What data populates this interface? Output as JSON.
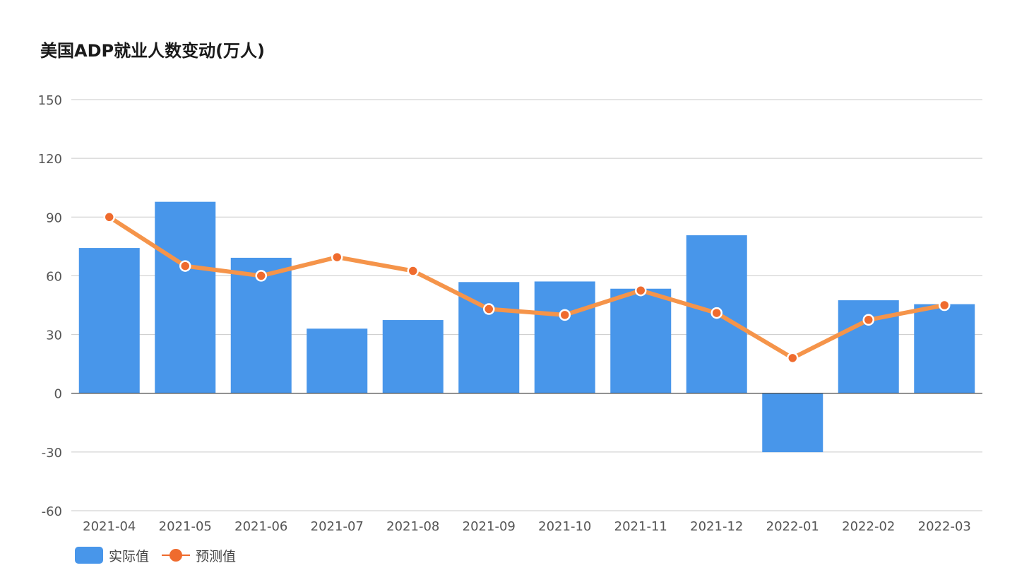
{
  "chart_data": {
    "type": "bar",
    "title": "美国ADP就业人数变动(万人)",
    "categories": [
      "2021-04",
      "2021-05",
      "2021-06",
      "2021-07",
      "2021-08",
      "2021-09",
      "2021-10",
      "2021-11",
      "2021-12",
      "2022-01",
      "2022-02",
      "2022-03"
    ],
    "series": [
      {
        "name": "实际值",
        "type": "bar",
        "color": "#4896ea",
        "values": [
          74.2,
          97.8,
          69.2,
          33.0,
          37.4,
          56.8,
          57.1,
          53.4,
          80.7,
          -30.1,
          47.5,
          45.5
        ]
      },
      {
        "name": "预测值",
        "type": "line",
        "color": "#f5944a",
        "marker_color": "#ef6b2e",
        "values": [
          90.0,
          65.0,
          60.0,
          69.5,
          62.5,
          43.0,
          40.0,
          52.5,
          41.0,
          18.0,
          37.5,
          45.0
        ]
      }
    ],
    "yticks": [
      150,
      120,
      90,
      60,
      30,
      0,
      -30,
      -60
    ],
    "ylim": [
      -60,
      150
    ],
    "xlabel": "",
    "ylabel": "",
    "grid": true,
    "legend": "bottom-left"
  },
  "colors": {
    "grid": "#c9c9c9",
    "zero_line": "#444444",
    "label": "#555555"
  }
}
